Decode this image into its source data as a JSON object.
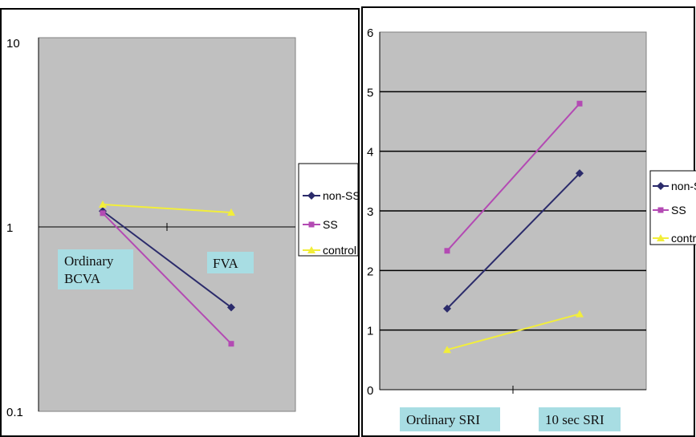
{
  "chart_data": [
    {
      "type": "line",
      "title": "",
      "xlabel": "",
      "ylabel": "",
      "yscale": "log",
      "ylim": [
        0.1,
        10
      ],
      "yticks": [
        "10",
        "1",
        "0.1"
      ],
      "categories": [
        "Ordinary BCVA",
        "FVA"
      ],
      "category_lines": [
        [
          "Ordinary",
          "BCVA"
        ],
        [
          "FVA"
        ]
      ],
      "grid": false,
      "legend": "right",
      "series": [
        {
          "name": "non-SS",
          "values": [
            1.18,
            0.36
          ],
          "color": "#2b2b6b",
          "marker": "diamond"
        },
        {
          "name": "SS",
          "values": [
            1.15,
            0.23
          ],
          "color": "#b34ab3",
          "marker": "square"
        },
        {
          "name": "control",
          "values": [
            1.28,
            1.16
          ],
          "color": "#f2ee3a",
          "marker": "triangle"
        }
      ],
      "plot_bg": "#c0c0c0",
      "label_bg": "#a8dde3"
    },
    {
      "type": "line",
      "title": "",
      "xlabel": "",
      "ylabel": "",
      "ylim": [
        0,
        6
      ],
      "yticks": [
        "0",
        "1",
        "2",
        "3",
        "4",
        "5",
        "6"
      ],
      "categories": [
        "Ordinary SRI",
        "10 sec SRI"
      ],
      "grid": true,
      "legend": "right",
      "series": [
        {
          "name": "non-SS",
          "values": [
            1.36,
            3.63
          ],
          "color": "#2b2b6b",
          "marker": "diamond"
        },
        {
          "name": "SS",
          "values": [
            2.33,
            4.8
          ],
          "color": "#b34ab3",
          "marker": "square"
        },
        {
          "name": "control",
          "values": [
            0.67,
            1.27
          ],
          "color": "#f2ee3a",
          "marker": "triangle"
        }
      ],
      "plot_bg": "#c0c0c0",
      "label_bg": "#a8dde3"
    }
  ]
}
